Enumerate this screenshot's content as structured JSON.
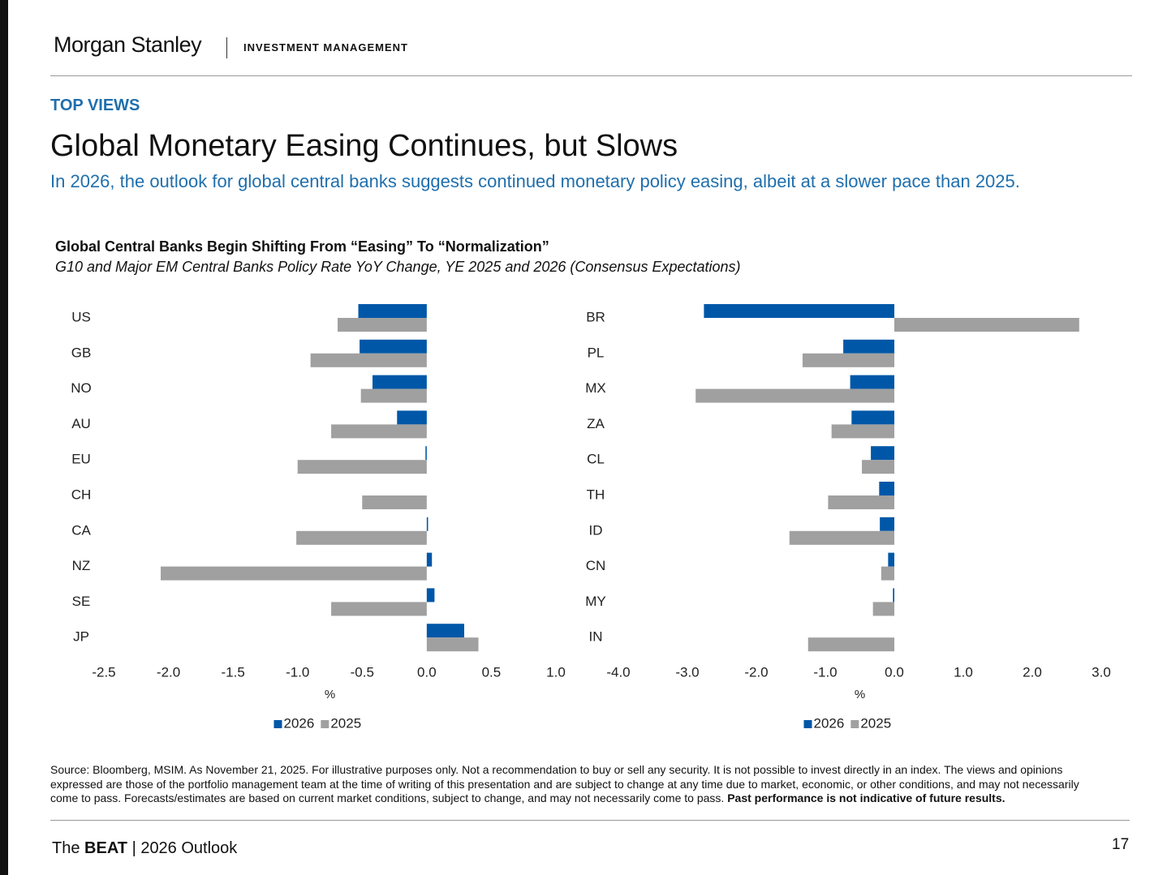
{
  "header": {
    "brand": "Morgan Stanley",
    "division": "INVESTMENT MANAGEMENT"
  },
  "section": "TOP VIEWS",
  "title": "Global Monetary Easing Continues, but Slows",
  "subtitle": "In 2026, the outlook for global central banks suggests continued monetary policy easing, albeit at a slower pace than 2025.",
  "chart_heading": {
    "title": "Global Central Banks Begin Shifting From “Easing” To “Normalization”",
    "subtitle": "G10 and Major EM Central Banks Policy Rate YoY Change, YE 2025 and 2026 (Consensus Expectations)"
  },
  "chart_data": [
    {
      "type": "bar",
      "orientation": "horizontal",
      "categories": [
        "US",
        "GB",
        "NO",
        "AU",
        "EU",
        "CH",
        "CA",
        "NZ",
        "SE",
        "JP"
      ],
      "series": [
        {
          "name": "2026",
          "color": "#0057a8",
          "values": [
            -0.53,
            -0.52,
            -0.42,
            -0.23,
            -0.01,
            0,
            0.01,
            0.04,
            0.06,
            0.29
          ]
        },
        {
          "name": "2025",
          "color": "#a0a0a0",
          "values": [
            -0.69,
            -0.9,
            -0.51,
            -0.74,
            -1.0,
            -0.5,
            -1.01,
            -2.06,
            -0.74,
            0.4
          ]
        }
      ],
      "xlim": [
        -2.5,
        1.0
      ],
      "xticks": [
        -2.5,
        {
          "value": -2,
          "label": "-2.0"
        },
        -1.5,
        {
          "value": -1,
          "label": "-1.0"
        },
        -0.5,
        {
          "value": 0,
          "label": "0.0"
        },
        0.5,
        {
          "value": 1,
          "label": "1.0"
        }
      ],
      "xlabel": "%"
    },
    {
      "type": "bar",
      "orientation": "horizontal",
      "categories": [
        "BR",
        "PL",
        "MX",
        "ZA",
        "CL",
        "TH",
        "ID",
        "CN",
        "MY",
        "IN"
      ],
      "series": [
        {
          "name": "2026",
          "color": "#0057a8",
          "values": [
            -2.76,
            -0.74,
            -0.64,
            -0.62,
            -0.34,
            -0.22,
            -0.21,
            -0.09,
            -0.02,
            0
          ]
        },
        {
          "name": "2025",
          "color": "#a0a0a0",
          "values": [
            2.68,
            -1.33,
            -2.88,
            -0.91,
            -0.47,
            -0.96,
            -1.52,
            -0.19,
            -0.31,
            -1.25
          ]
        }
      ],
      "xlim": [
        -4,
        3
      ],
      "xticks": [
        {
          "value": -4,
          "label": "-4.0"
        },
        {
          "value": -3,
          "label": "-3.0"
        },
        {
          "value": -2,
          "label": "-2.0"
        },
        {
          "value": -1,
          "label": "-1.0"
        },
        {
          "value": 0,
          "label": "0.0"
        },
        {
          "value": 1,
          "label": "1.0"
        },
        {
          "value": 2,
          "label": "2.0"
        },
        {
          "value": 3,
          "label": "3.0"
        }
      ],
      "xlabel": "%"
    }
  ],
  "source": "Source: Bloomberg, MSIM. As November 21, 2025. For illustrative purposes only. Not a recommendation to buy or sell any security. It is not possible to invest directly in an index. The views and opinions expressed are those of the portfolio management team at the time of writing of this presentation and are subject to change at any time due to market, economic, or other conditions, and may not necessarily come to pass.  Forecasts/estimates are based on current market conditions, subject to change, and may not necessarily come to pass.",
  "source_bold": "Past performance is not indicative of future results.",
  "footer": {
    "prefix": "The",
    "brand": "BEAT",
    "suffix": "| 2026 Outlook",
    "page": "17"
  }
}
